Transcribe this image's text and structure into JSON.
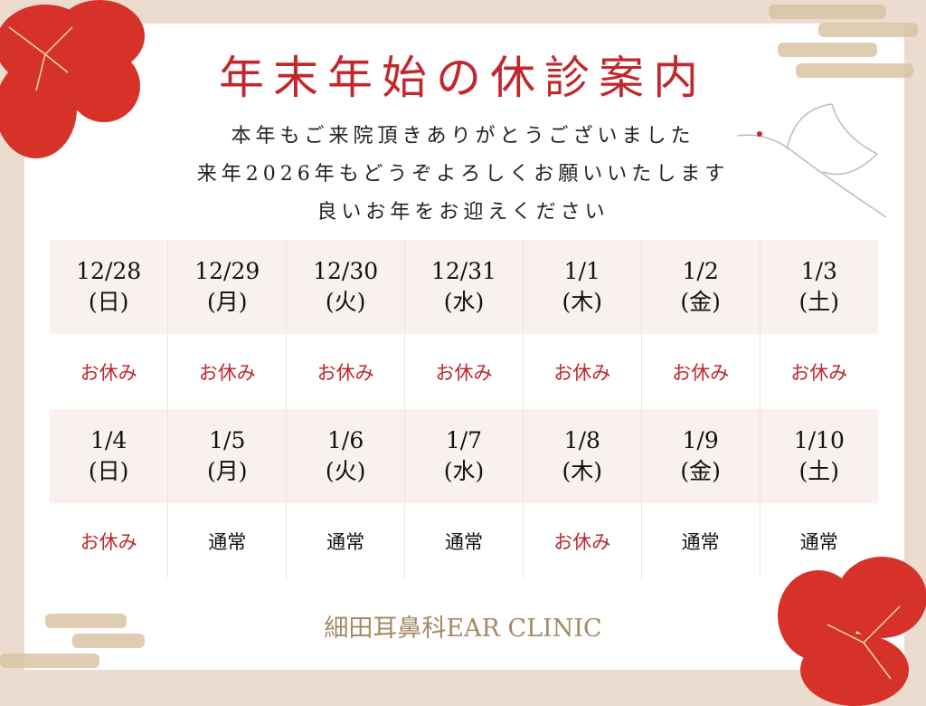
{
  "colors": {
    "red": "#c0282d",
    "gold": "#a58a63",
    "border": "#ecdccf"
  },
  "title": "年末年始の休診案内",
  "messages": [
    "本年もご来院頂きありがとうございました",
    "来年2026年もどうぞよろしくお願いいたします",
    "良いお年をお迎えください"
  ],
  "weeks": [
    {
      "days": [
        {
          "date": "12/28",
          "dow": "(日)",
          "status": "お休み",
          "closed": true
        },
        {
          "date": "12/29",
          "dow": "(月)",
          "status": "お休み",
          "closed": true
        },
        {
          "date": "12/30",
          "dow": "(火)",
          "status": "お休み",
          "closed": true
        },
        {
          "date": "12/31",
          "dow": "(水)",
          "status": "お休み",
          "closed": true
        },
        {
          "date": "1/1",
          "dow": "(木)",
          "status": "お休み",
          "closed": true
        },
        {
          "date": "1/2",
          "dow": "(金)",
          "status": "お休み",
          "closed": true
        },
        {
          "date": "1/3",
          "dow": "(土)",
          "status": "お休み",
          "closed": true
        }
      ]
    },
    {
      "days": [
        {
          "date": "1/4",
          "dow": "(日)",
          "status": "お休み",
          "closed": true
        },
        {
          "date": "1/5",
          "dow": "(月)",
          "status": "通常",
          "closed": false
        },
        {
          "date": "1/6",
          "dow": "(火)",
          "status": "通常",
          "closed": false
        },
        {
          "date": "1/7",
          "dow": "(水)",
          "status": "通常",
          "closed": false
        },
        {
          "date": "1/8",
          "dow": "(木)",
          "status": "お休み",
          "closed": true
        },
        {
          "date": "1/9",
          "dow": "(金)",
          "status": "通常",
          "closed": false
        },
        {
          "date": "1/10",
          "dow": "(土)",
          "status": "通常",
          "closed": false
        }
      ]
    }
  ],
  "clinic_name": "細田耳鼻科EAR CLINIC"
}
